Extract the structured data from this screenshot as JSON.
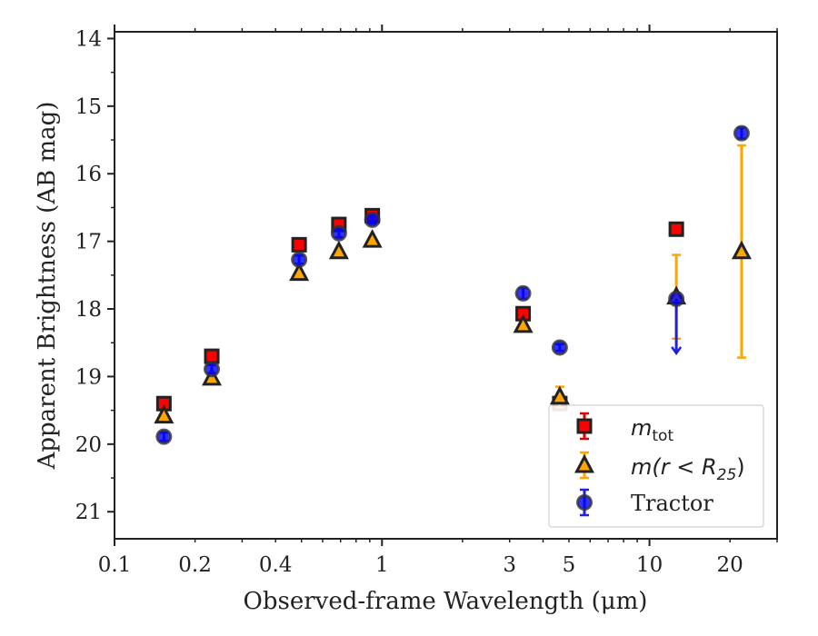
{
  "chart_data": {
    "type": "scatter",
    "xlabel": "Observed-frame Wavelength (μm)",
    "ylabel": "Apparent Brightness (AB mag)",
    "x_scale": "log",
    "y_inverted": true,
    "xlim": [
      0.1,
      30
    ],
    "ylim": [
      21.4,
      13.9
    ],
    "x_tick_labels": [
      "0.1",
      "0.2",
      "0.4",
      "1",
      "3",
      "5",
      "10",
      "20"
    ],
    "x_ticks": [
      0.1,
      0.2,
      0.4,
      1,
      3,
      5,
      10,
      20
    ],
    "y_ticks": [
      14,
      15,
      16,
      17,
      18,
      19,
      20,
      21
    ],
    "y_tick_labels": [
      "14",
      "15",
      "16",
      "17",
      "18",
      "19",
      "20",
      "21"
    ],
    "grid": false,
    "legend_position": "bottom-right",
    "series": [
      {
        "name": "m_tot",
        "legend_base": "m",
        "legend_sub": "tot",
        "marker": "square",
        "color": "#ff0000",
        "edge_color": "#222222",
        "points": [
          {
            "x": 0.153,
            "y": 19.4,
            "err": 0.03
          },
          {
            "x": 0.231,
            "y": 18.7,
            "err": 0.03
          },
          {
            "x": 0.49,
            "y": 17.05,
            "err": 0.03
          },
          {
            "x": 0.69,
            "y": 16.75,
            "err": 0.03
          },
          {
            "x": 0.92,
            "y": 16.62,
            "err": 0.03
          },
          {
            "x": 3.37,
            "y": 18.07,
            "err": 0.03
          },
          {
            "x": 4.62,
            "y": 19.4,
            "err": 0.03
          },
          {
            "x": 12.6,
            "y": 16.82,
            "err": 0.03
          }
        ]
      },
      {
        "name": "m(r < R25)",
        "legend_math": "m(r < R",
        "legend_sub": "25",
        "marker": "triangle",
        "color": "#ffa500",
        "edge_color": "#222222",
        "points": [
          {
            "x": 0.153,
            "y": 19.58,
            "err": 0.03
          },
          {
            "x": 0.231,
            "y": 19.02,
            "err": 0.03
          },
          {
            "x": 0.49,
            "y": 17.47,
            "err": 0.03
          },
          {
            "x": 0.69,
            "y": 17.15,
            "err": 0.03
          },
          {
            "x": 0.92,
            "y": 16.98,
            "err": 0.03
          },
          {
            "x": 3.37,
            "y": 18.24,
            "err": 0.03
          },
          {
            "x": 4.62,
            "y": 19.3,
            "err": 0.15
          },
          {
            "x": 12.6,
            "y": 17.82,
            "err": 0.62
          },
          {
            "x": 22.1,
            "y": 17.15,
            "err": 1.57
          }
        ]
      },
      {
        "name": "Tractor",
        "marker": "circle",
        "color": "#0000ff",
        "edge_color": "#333333",
        "points": [
          {
            "x": 0.153,
            "y": 19.89,
            "err": 0.06
          },
          {
            "x": 0.231,
            "y": 18.89,
            "err": 0.06
          },
          {
            "x": 0.49,
            "y": 17.27,
            "err": 0.06
          },
          {
            "x": 0.69,
            "y": 16.88,
            "err": 0.06
          },
          {
            "x": 0.92,
            "y": 16.68,
            "err": 0.06
          },
          {
            "x": 3.37,
            "y": 17.77,
            "err": 0.08
          },
          {
            "x": 4.62,
            "y": 18.57,
            "err": 0.05
          },
          {
            "x": 12.6,
            "y": 17.85,
            "err": 0.05,
            "upper_limit": true
          },
          {
            "x": 22.1,
            "y": 15.4,
            "err": 0.08
          }
        ]
      }
    ]
  }
}
